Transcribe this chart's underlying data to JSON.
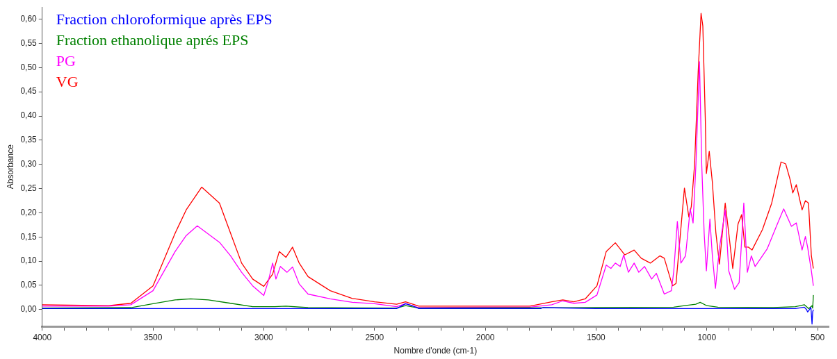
{
  "chart_data": {
    "type": "line",
    "xlabel": "Nombre d'onde (cm-1)",
    "ylabel": "Absorbance",
    "legend": "top left",
    "grid": false,
    "marker": "none",
    "line_style": "solid",
    "xlim": [
      4000,
      450
    ],
    "ylim": [
      -0.035,
      0.625
    ],
    "xticks": [
      4000,
      {
        "value": 3900,
        "label": null
      },
      {
        "value": 3800,
        "label": null
      },
      {
        "value": 3700,
        "label": null
      },
      {
        "value": 3600,
        "label": null
      },
      3500,
      {
        "value": 3400,
        "label": null
      },
      {
        "value": 3300,
        "label": null
      },
      {
        "value": 3200,
        "label": null
      },
      {
        "value": 3100,
        "label": null
      },
      3000,
      {
        "value": 2900,
        "label": null
      },
      {
        "value": 2800,
        "label": null
      },
      {
        "value": 2700,
        "label": null
      },
      {
        "value": 2600,
        "label": null
      },
      2500,
      {
        "value": 2400,
        "label": null
      },
      {
        "value": 2300,
        "label": null
      },
      {
        "value": 2200,
        "label": null
      },
      {
        "value": 2100,
        "label": null
      },
      2000,
      {
        "value": 1900,
        "label": null
      },
      {
        "value": 1800,
        "label": null
      },
      {
        "value": 1700,
        "label": null
      },
      {
        "value": 1600,
        "label": null
      },
      1500,
      {
        "value": 1400,
        "label": null
      },
      {
        "value": 1300,
        "label": null
      },
      {
        "value": 1200,
        "label": null
      },
      {
        "value": 1100,
        "label": null
      },
      1000,
      {
        "value": 900,
        "label": null
      },
      {
        "value": 800,
        "label": null
      },
      {
        "value": 700,
        "label": null
      },
      {
        "value": 600,
        "label": null
      },
      500
    ],
    "yticks": [
      {
        "value": 0,
        "label": "0,00"
      },
      {
        "value": 0.05,
        "label": "0,05"
      },
      {
        "value": 0.1,
        "label": "0,10"
      },
      {
        "value": 0.15,
        "label": "0,15"
      },
      {
        "value": 0.2,
        "label": "0,20"
      },
      {
        "value": 0.25,
        "label": "0,25"
      },
      {
        "value": 0.3,
        "label": "0,30"
      },
      {
        "value": 0.35,
        "label": "0,35"
      },
      {
        "value": 0.4,
        "label": "0,40"
      },
      {
        "value": 0.45,
        "label": "0,45"
      },
      {
        "value": 0.5,
        "label": "0,50"
      },
      {
        "value": 0.55,
        "label": "0,55"
      },
      {
        "value": 0.6,
        "label": "0,60"
      }
    ],
    "series": [
      {
        "name": "Fraction chloroformique après EPS",
        "color": "#0000ff",
        "x": [
          4000,
          3500,
          3000,
          2500,
          2400,
          2360,
          2330,
          2300,
          2000,
          1750,
          1740,
          1500,
          1000,
          700,
          600,
          560,
          550,
          545,
          530,
          525,
          522,
          519
        ],
        "values": [
          0.002,
          0.002,
          0.002,
          0.002,
          0.002,
          0.012,
          0.008,
          0.002,
          0.002,
          0.002,
          0.004,
          0.002,
          0.002,
          0.002,
          0.002,
          0.005,
          0.0,
          -0.005,
          0.004,
          -0.03,
          -0.005,
          0.0
        ]
      },
      {
        "name": "Fraction ethanolique aprés EPS",
        "color": "#008000",
        "x": [
          4000,
          3600,
          3500,
          3400,
          3330,
          3250,
          3150,
          3050,
          2950,
          2900,
          2800,
          2400,
          2360,
          2300,
          1500,
          1150,
          1100,
          1050,
          1030,
          1000,
          950,
          700,
          600,
          560,
          540,
          525,
          522,
          519
        ],
        "values": [
          0.003,
          0.004,
          0.012,
          0.02,
          0.022,
          0.02,
          0.013,
          0.006,
          0.006,
          0.007,
          0.004,
          0.003,
          0.008,
          0.003,
          0.004,
          0.005,
          0.008,
          0.011,
          0.015,
          0.008,
          0.005,
          0.004,
          0.006,
          0.01,
          0.002,
          0.008,
          0.003,
          0.03
        ]
      },
      {
        "name": "PG",
        "color": "#ff00ff",
        "x": [
          4000,
          3700,
          3600,
          3500,
          3400,
          3350,
          3300,
          3200,
          3150,
          3100,
          3050,
          3000,
          2980,
          2960,
          2945,
          2925,
          2895,
          2870,
          2840,
          2800,
          2700,
          2600,
          2500,
          2400,
          2360,
          2300,
          2000,
          1800,
          1700,
          1650,
          1600,
          1549,
          1496,
          1454,
          1433,
          1413,
          1391,
          1375,
          1354,
          1328,
          1307,
          1281,
          1249,
          1228,
          1192,
          1160,
          1149,
          1133,
          1117,
          1096,
          1075,
          1062,
          1049,
          1033,
          1023,
          1012,
          1002,
          986,
          975,
          961,
          943,
          917,
          901,
          875,
          854,
          833,
          817,
          799,
          782,
          728,
          686,
          653,
          618,
          596,
          570,
          555,
          545,
          528,
          519
        ],
        "values": [
          0.007,
          0.007,
          0.01,
          0.039,
          0.12,
          0.153,
          0.173,
          0.139,
          0.111,
          0.077,
          0.049,
          0.029,
          0.058,
          0.096,
          0.063,
          0.089,
          0.077,
          0.088,
          0.053,
          0.032,
          0.022,
          0.015,
          0.012,
          0.006,
          0.012,
          0.004,
          0.005,
          0.005,
          0.01,
          0.018,
          0.013,
          0.015,
          0.03,
          0.092,
          0.085,
          0.096,
          0.089,
          0.113,
          0.077,
          0.096,
          0.077,
          0.089,
          0.063,
          0.075,
          0.032,
          0.039,
          0.08,
          0.182,
          0.096,
          0.111,
          0.208,
          0.179,
          0.301,
          0.512,
          0.301,
          0.158,
          0.08,
          0.187,
          0.111,
          0.044,
          0.127,
          0.206,
          0.08,
          0.042,
          0.056,
          0.22,
          0.077,
          0.111,
          0.089,
          0.125,
          0.172,
          0.208,
          0.172,
          0.179,
          0.123,
          0.151,
          0.129,
          0.08,
          0.049
        ]
      },
      {
        "name": "VG",
        "color": "#ff0000",
        "x": [
          4000,
          3700,
          3600,
          3500,
          3400,
          3350,
          3280,
          3200,
          3150,
          3100,
          3050,
          3000,
          2960,
          2930,
          2900,
          2870,
          2840,
          2800,
          2700,
          2600,
          2500,
          2400,
          2360,
          2300,
          2000,
          1800,
          1700,
          1650,
          1600,
          1549,
          1496,
          1454,
          1413,
          1370,
          1328,
          1296,
          1255,
          1212,
          1192,
          1155,
          1139,
          1101,
          1081,
          1070,
          1055,
          1039,
          1026,
          1018,
          1007,
          1002,
          989,
          975,
          959,
          943,
          917,
          901,
          883,
          859,
          843,
          828,
          812,
          796,
          749,
          707,
          665,
          644,
          623,
          612,
          596,
          570,
          555,
          541,
          528,
          519
        ],
        "values": [
          0.01,
          0.008,
          0.013,
          0.049,
          0.158,
          0.206,
          0.253,
          0.22,
          0.158,
          0.096,
          0.063,
          0.048,
          0.073,
          0.12,
          0.108,
          0.129,
          0.096,
          0.068,
          0.039,
          0.023,
          0.016,
          0.011,
          0.016,
          0.007,
          0.007,
          0.007,
          0.016,
          0.02,
          0.016,
          0.022,
          0.049,
          0.12,
          0.138,
          0.113,
          0.123,
          0.106,
          0.096,
          0.111,
          0.106,
          0.049,
          0.054,
          0.251,
          0.191,
          0.213,
          0.301,
          0.491,
          0.612,
          0.586,
          0.396,
          0.281,
          0.327,
          0.263,
          0.158,
          0.094,
          0.22,
          0.158,
          0.085,
          0.177,
          0.196,
          0.129,
          0.129,
          0.123,
          0.165,
          0.22,
          0.305,
          0.301,
          0.267,
          0.241,
          0.258,
          0.206,
          0.225,
          0.22,
          0.111,
          0.085
        ]
      }
    ]
  }
}
